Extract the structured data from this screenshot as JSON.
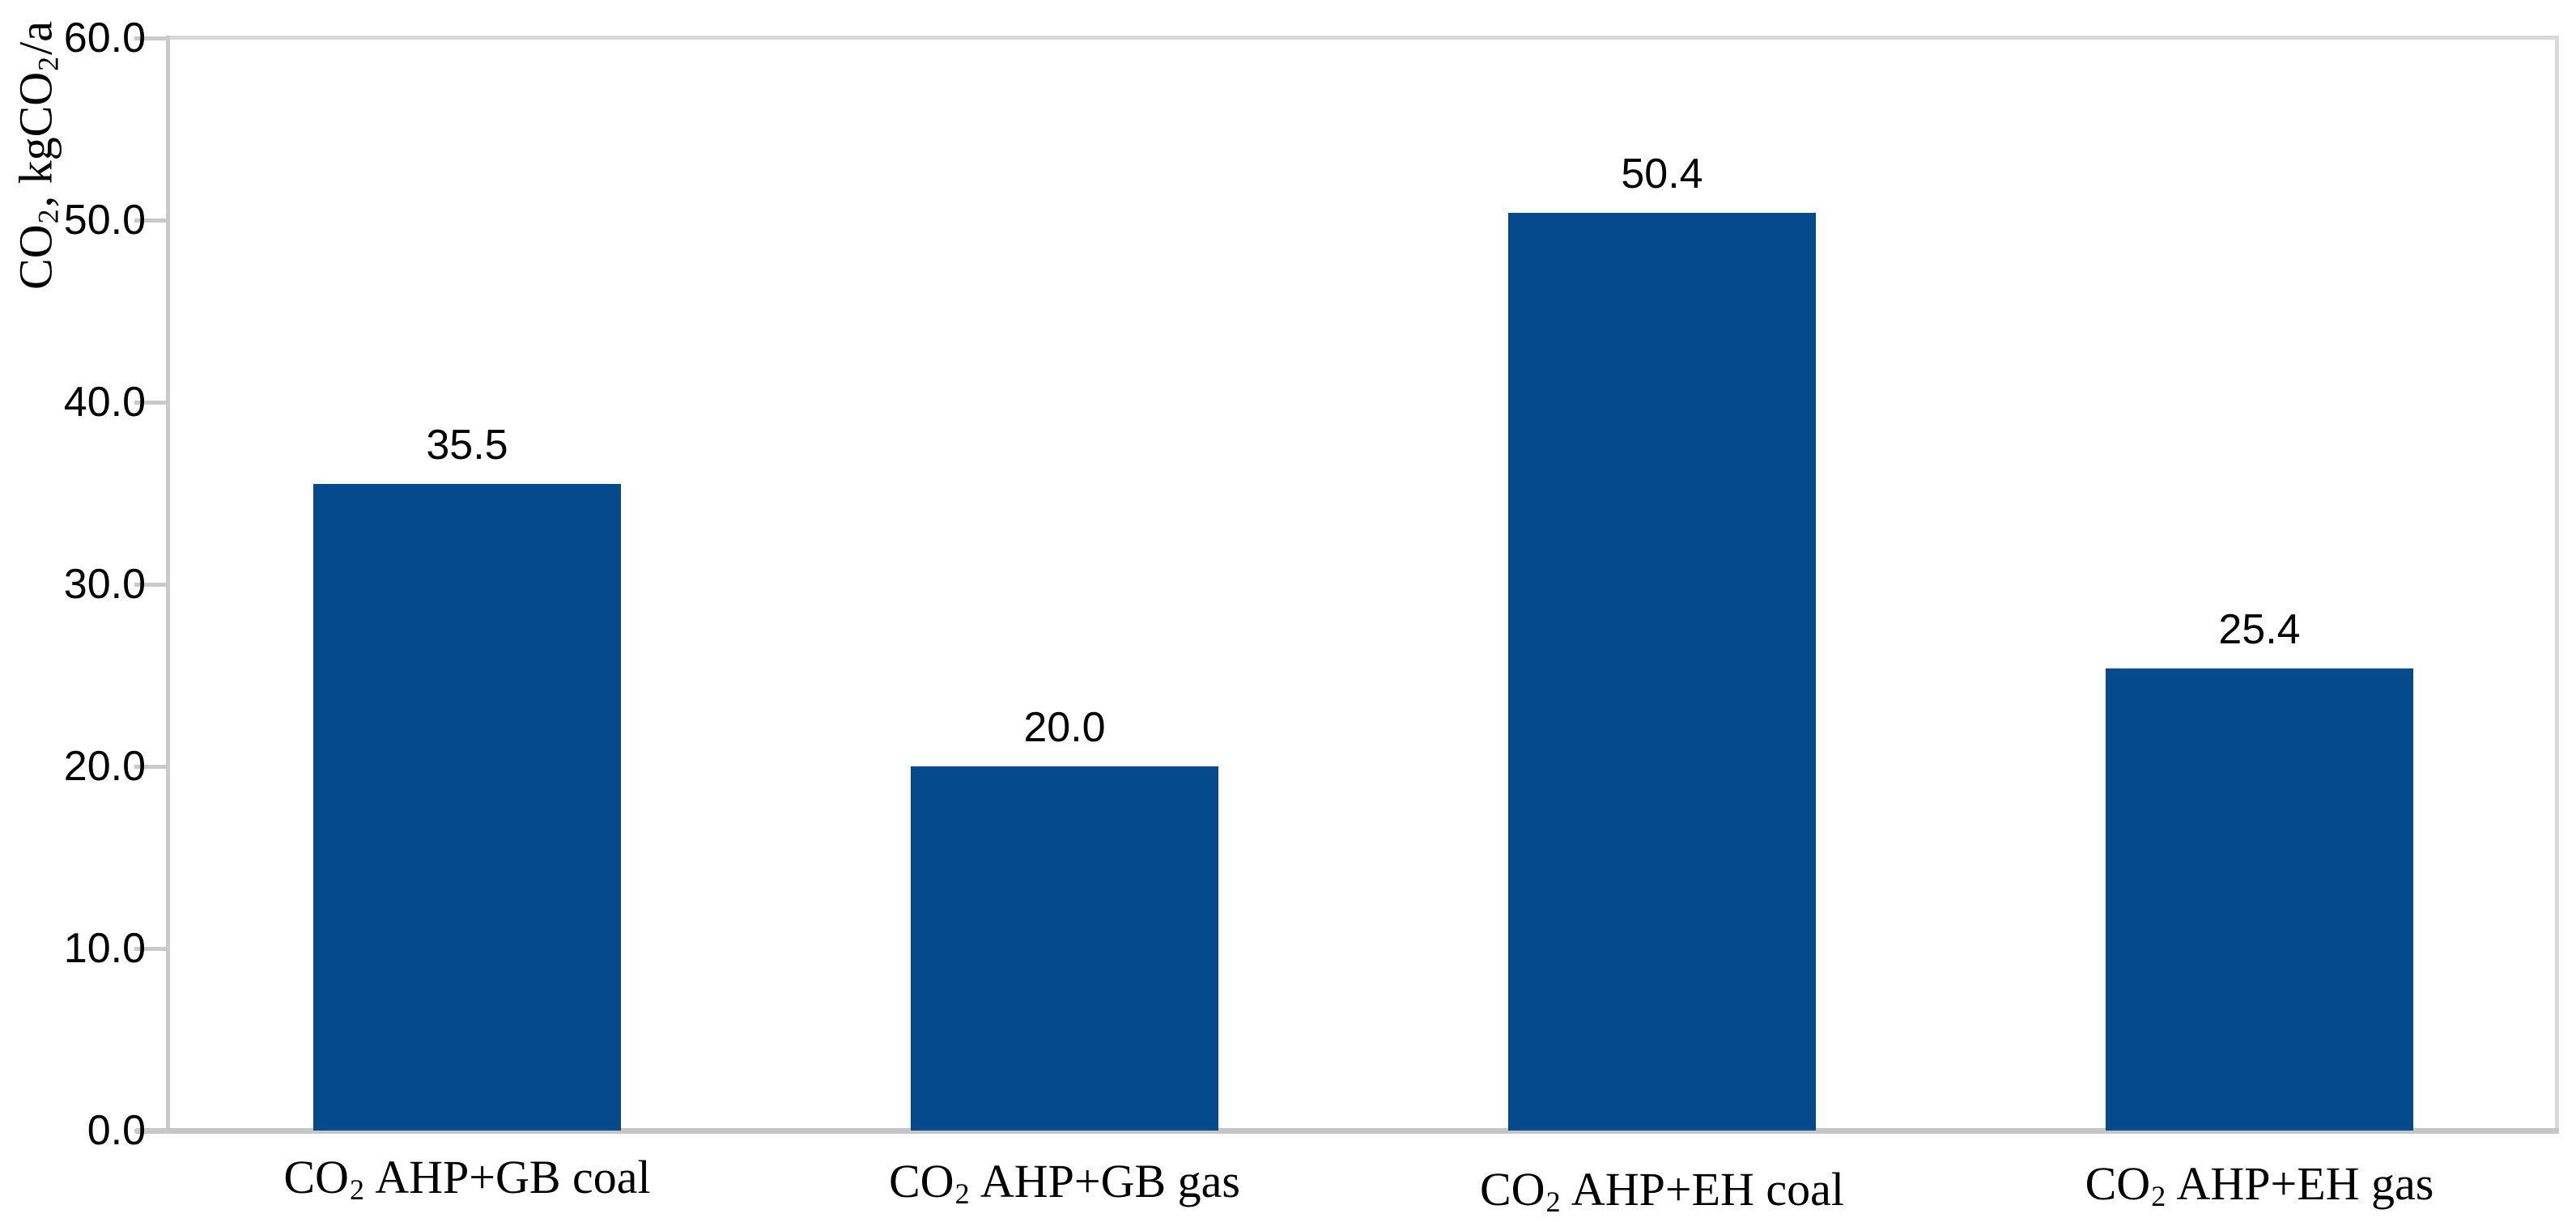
{
  "chart_data": {
    "type": "bar",
    "categories": [
      "CO₂ AHP+GB coal",
      "CO₂ AHP+GB gas",
      "CO₂ AHP+EH coal",
      "CO₂ AHP+EH gas"
    ],
    "values": [
      35.5,
      20.0,
      50.4,
      25.4
    ],
    "value_labels": [
      "35.5",
      "20.0",
      "50.4",
      "25.4"
    ],
    "ylabel": "CO₂, kgCO₂/a",
    "xlabel": "",
    "yticks": [
      "0.0",
      "10.0",
      "20.0",
      "30.0",
      "40.0",
      "50.0",
      "60.0"
    ],
    "ylim": [
      0,
      60
    ],
    "grid": false,
    "legend": false,
    "bar_color": "#054A8D",
    "axis_color": "#C9C9C9",
    "frame_color": "#D9D9D9",
    "text_color": "#000000"
  }
}
